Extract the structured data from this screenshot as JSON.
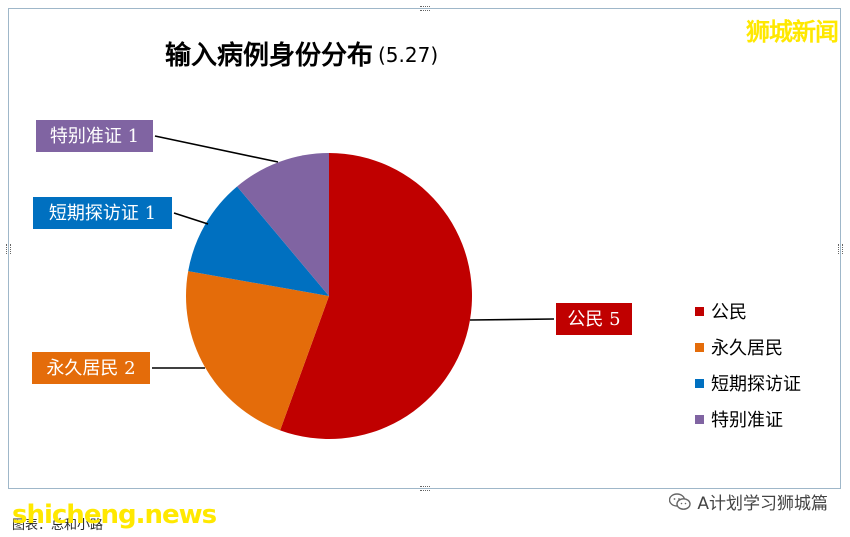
{
  "chart_data": {
    "type": "pie",
    "title": "输入病例身份分布",
    "title_date": "(5.27)",
    "slices": [
      {
        "label": "公民",
        "value": 5,
        "data_label": "公民 5",
        "color": "#c00000"
      },
      {
        "label": "永久居民",
        "value": 2,
        "data_label": "永久居民 2",
        "color": "#e46c0a"
      },
      {
        "label": "短期探访证",
        "value": 1,
        "data_label": "短期探访证 1",
        "color": "#0070c0"
      },
      {
        "label": "特别准证",
        "value": 1,
        "data_label": "特别准证 1",
        "color": "#8064a2"
      }
    ],
    "legend_position": "right"
  },
  "watermarks": {
    "top_right": "狮城新闻",
    "bottom_left": "shicheng.news",
    "wechat": "A计划学习狮城篇"
  },
  "caption": "图表：总和小路"
}
